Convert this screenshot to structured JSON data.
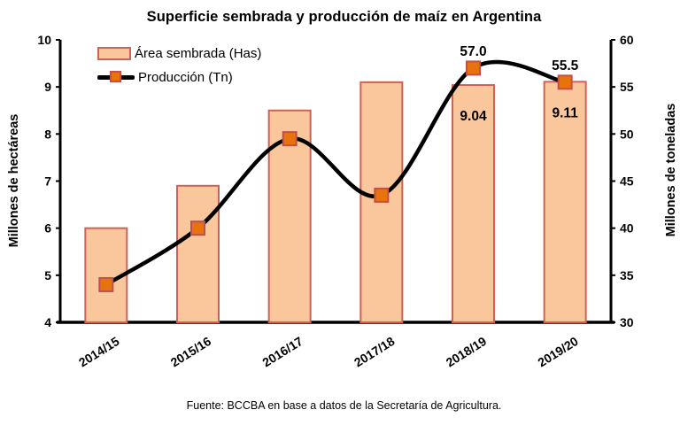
{
  "title": "Superficie sembrada y producción de maíz en Argentina",
  "footer": "Fuente: BCCBA en base a datos de la Secretaría de Agricultura.",
  "left_axis": {
    "label": "Millones de hectáreas",
    "min": 4,
    "max": 10,
    "ticks": [
      4,
      5,
      6,
      7,
      8,
      9,
      10
    ]
  },
  "right_axis": {
    "label": "Millones de toneladas",
    "min": 30,
    "max": 60,
    "ticks": [
      30,
      35,
      40,
      45,
      50,
      55,
      60
    ]
  },
  "legend": [
    {
      "label": "Área sembrada (Has)",
      "type": "bar"
    },
    {
      "label": "Producción (Tn)",
      "type": "line"
    }
  ],
  "colors": {
    "bar_fill": "#FAC79C",
    "bar_border": "#CE6256",
    "marker_fill": "#E8720C",
    "marker_border": "#C0504D",
    "line": "#000000",
    "axis": "#000000",
    "text": "#000000",
    "background": "#FFFFFF"
  },
  "chart_data": {
    "type": "bar",
    "subtype": "bar+line-combo",
    "title": "Superficie sembrada y producción de maíz en Argentina",
    "categories": [
      "2014/15",
      "2015/16",
      "2016/17",
      "2017/18",
      "2018/19",
      "2019/20"
    ],
    "series": [
      {
        "name": "Área sembrada (Has)",
        "type": "bar",
        "axis": "left",
        "values": [
          6.0,
          6.9,
          8.5,
          9.1,
          9.04,
          9.11
        ],
        "data_labels": {
          "4": "9.04",
          "5": "9.11"
        }
      },
      {
        "name": "Producción (Tn)",
        "type": "line",
        "axis": "right",
        "smoothed": true,
        "values": [
          34,
          40,
          49.5,
          43.5,
          57.0,
          55.5
        ],
        "data_labels": {
          "4": "57.0",
          "5": "55.5"
        }
      }
    ],
    "ylabel_left": "Millones de hectáreas",
    "ylabel_right": "Millones de toneladas",
    "ylim_left": [
      4,
      10
    ],
    "ylim_right": [
      30,
      60
    ],
    "grid": false,
    "legend_position": "top-left-inside"
  }
}
